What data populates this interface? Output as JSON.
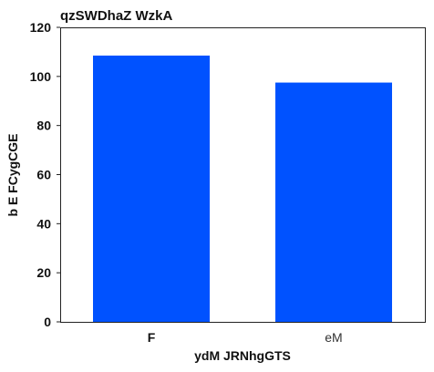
{
  "chart_data": {
    "type": "bar",
    "title": "qzSWDhaZ WzkA",
    "xlabel": "ydM JRNhgGTS",
    "ylabel": "b E FCygCGE",
    "categories": [
      "F",
      "eM"
    ],
    "values": [
      108.5,
      97.5
    ],
    "ylim": [
      0,
      120
    ],
    "yticks": [
      0,
      20,
      40,
      60,
      80,
      100,
      120
    ],
    "bar_color": "#0052ff",
    "grid": false,
    "legend": "none"
  }
}
